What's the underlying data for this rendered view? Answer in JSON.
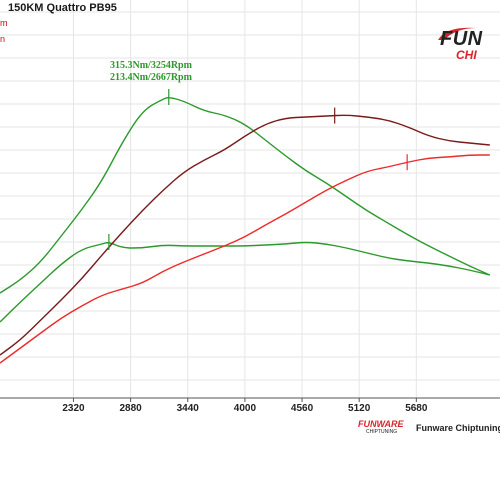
{
  "chart_data": {
    "type": "line",
    "title": "150KM Quattro PB95",
    "xlabel": "",
    "ylabel": "",
    "x_ticks": [
      "2320",
      "2880",
      "3440",
      "4000",
      "4560",
      "5120",
      "5680"
    ],
    "xlim": [
      1600,
      6500
    ],
    "grid": true,
    "legend_marks": [
      "m",
      "n"
    ],
    "series": [
      {
        "color": "#2a9a2a",
        "x": [
          1600,
          1800,
          2000,
          2200,
          2400,
          2600,
          2800,
          3000,
          3200,
          3254,
          3400,
          3600,
          3800,
          4000,
          4200,
          4400,
          4600,
          4800,
          5000,
          5200,
          5400,
          5600,
          5800,
          6000,
          6200,
          6400
        ],
        "y": [
          293,
          280,
          262,
          236,
          210,
          181,
          142,
          110,
          99,
          97,
          101,
          111,
          115,
          124,
          140,
          156,
          171,
          183,
          197,
          211,
          223,
          235,
          246,
          256,
          266,
          275
        ]
      },
      {
        "color": "#2a9a2a",
        "x": [
          1600,
          1800,
          2000,
          2200,
          2400,
          2600,
          2667,
          2800,
          3000,
          3200,
          3400,
          3600,
          3800,
          4000,
          4200,
          4400,
          4600,
          4800,
          5000,
          5200,
          5400,
          5600,
          5800,
          6000,
          6200,
          6400
        ],
        "y": [
          322,
          302,
          283,
          264,
          249,
          244,
          242,
          248,
          248,
          245,
          246,
          246,
          246,
          246,
          245,
          244,
          242,
          244,
          248,
          253,
          258,
          261,
          263,
          266,
          270,
          275
        ]
      },
      {
        "color": "#7a1a1a",
        "x": [
          1600,
          1800,
          2000,
          2200,
          2400,
          2600,
          2800,
          3000,
          3200,
          3400,
          3600,
          3800,
          4000,
          4200,
          4400,
          4600,
          4800,
          5000,
          5200,
          5400,
          5600,
          5800,
          6000,
          6200,
          6400
        ],
        "y": [
          355,
          340,
          320,
          300,
          279,
          255,
          232,
          210,
          190,
          172,
          160,
          150,
          136,
          124,
          118,
          117,
          116,
          115,
          117,
          120,
          127,
          136,
          141,
          143,
          145
        ]
      },
      {
        "color": "#ee2a2a",
        "x": [
          1600,
          1800,
          2000,
          2200,
          2400,
          2600,
          2800,
          3000,
          3200,
          3400,
          3600,
          3800,
          4000,
          4200,
          4400,
          4600,
          4800,
          5000,
          5200,
          5400,
          5600,
          5800,
          6000,
          6200,
          6400
        ],
        "y": [
          363,
          348,
          333,
          318,
          306,
          295,
          289,
          283,
          271,
          262,
          254,
          246,
          237,
          225,
          214,
          202,
          190,
          180,
          171,
          167,
          162,
          158,
          157,
          155,
          155
        ]
      }
    ],
    "annotations": [
      {
        "text": "315.3Nm/3254Rpm",
        "x": 3254,
        "color": "#2a9a2a"
      },
      {
        "text": "213.4Nm/2667Rpm",
        "x": 2667,
        "color": "#2a9a2a"
      }
    ],
    "markers": [
      {
        "series": 0,
        "x": 3254,
        "color": "#2a9a2a"
      },
      {
        "series": 1,
        "x": 2667,
        "color": "#2a9a2a"
      },
      {
        "series": 2,
        "x": 4880,
        "color": "#7a1a1a"
      },
      {
        "series": 3,
        "x": 5590,
        "color": "#ee2a2a"
      }
    ]
  },
  "branding": {
    "logo_text": "FUN",
    "logo_sub": "CHI",
    "footer_logo_text": "FUNWARE",
    "footer_logo_sub": "CHIPTUNING",
    "footer_text": "Funware Chiptuning"
  }
}
